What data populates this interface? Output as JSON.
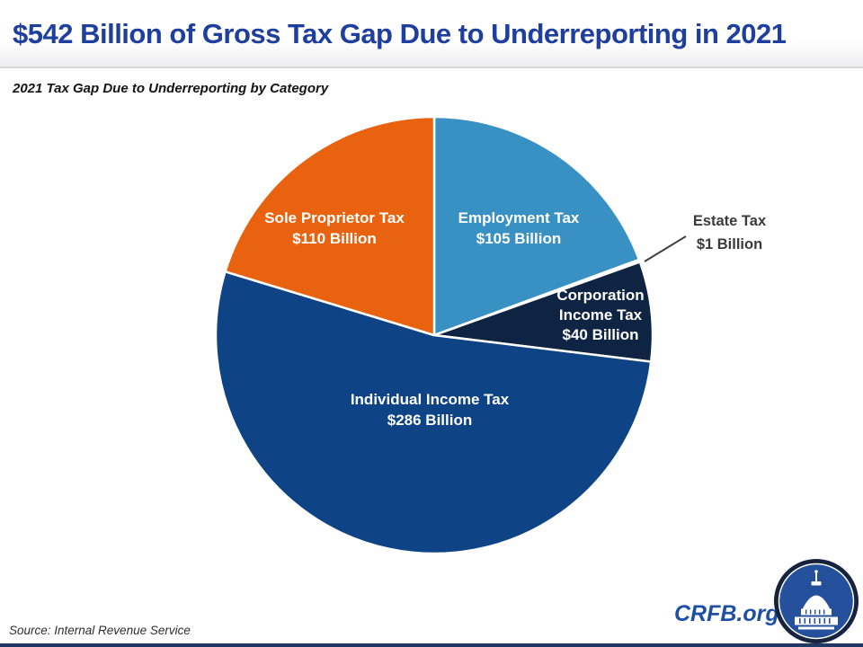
{
  "header": {
    "title": "$542 Billion of Gross Tax Gap Due to Underreporting in 2021"
  },
  "chart_data": {
    "type": "pie",
    "title": "2021 Tax Gap Due to Underreporting by Category",
    "unit": "billions of US dollars",
    "total_value": 542,
    "legend": "none (labels placed on slices, tiny slice labeled with leader line)",
    "start_angle_deg": 0,
    "direction": "clockwise from 12 o'clock",
    "slices": [
      {
        "label": "Employment Tax",
        "value": 105,
        "value_label": "$105 Billion",
        "color": "#3990c3",
        "label_color": "#ffffff",
        "label_position": "inside"
      },
      {
        "label": "Estate Tax",
        "value": 1,
        "value_label": "$1 Billion",
        "color": "#cfe0ec",
        "label_color": "#3a3a3a",
        "label_position": "outside-with-leader-line"
      },
      {
        "label": "Corporation Income Tax",
        "value": 40,
        "value_label": "$40 Billion",
        "color": "#0f2343",
        "label_color": "#ffffff",
        "label_position": "inside"
      },
      {
        "label": "Individual Income Tax",
        "value": 286,
        "value_label": "$286 Billion",
        "color": "#0e4486",
        "label_color": "#ffffff",
        "label_position": "inside"
      },
      {
        "label": "Sole Proprietor Tax",
        "value": 110,
        "value_label": "$110 Billion",
        "color": "#e9620f",
        "label_color": "#ffffff",
        "label_position": "inside"
      }
    ],
    "corp_label_lines": {
      "line1": "Corporation",
      "line2": "Income Tax"
    }
  },
  "footer": {
    "source": "Source: Internal Revenue Service",
    "brand": "CRFB.org"
  },
  "colors": {
    "title_blue": "#1e3f9e",
    "brand_blue": "#1e4fa5",
    "bottom_bar": "#1f3864",
    "slice_border": "#ffffff",
    "leader_line": "#3f3f3f"
  }
}
